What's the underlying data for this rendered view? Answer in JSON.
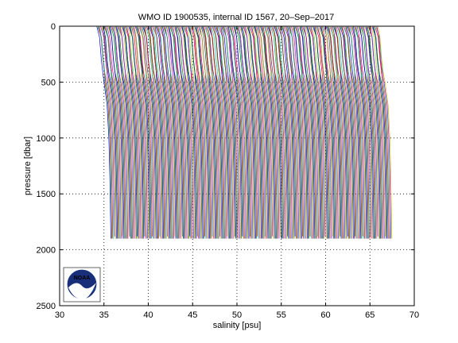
{
  "chart_data": {
    "type": "line",
    "title": "WMO ID 1900535, internal ID 1567, 20–Sep–2017",
    "xlabel": "salinity [psu]",
    "ylabel": "pressure [dbar]",
    "xlim": [
      30,
      70
    ],
    "ylim": [
      0,
      2500
    ],
    "y_inverted": true,
    "grid": true,
    "x_ticks": [
      30,
      35,
      40,
      45,
      50,
      55,
      60,
      65,
      70
    ],
    "y_ticks": [
      0,
      500,
      1000,
      1500,
      2000,
      2500
    ],
    "x_tick_labels": [
      "30",
      "35",
      "40",
      "45",
      "50",
      "55",
      "60",
      "65",
      "70"
    ],
    "y_tick_labels": [
      "0",
      "500",
      "1000",
      "1500",
      "2000",
      "2500"
    ],
    "series_colors": [
      "#0000ff",
      "#008000",
      "#ff0000",
      "#00bfbf",
      "#bf00bf",
      "#bfbf00",
      "#404040"
    ],
    "profile_pressures": [
      5,
      100,
      200,
      300,
      400,
      500,
      700,
      1000,
      1300,
      1600,
      1900
    ],
    "profile_shape_offsets": [
      -0.8,
      -0.5,
      -0.4,
      -0.3,
      -0.15,
      0.0,
      0.35,
      0.55,
      0.65,
      0.72,
      0.78
    ],
    "profile_count": 300,
    "profile_first_base_salinity": 35.0,
    "profile_salinity_step": 0.106,
    "profile_bottom_pressures_cycle": [
      1950,
      1900,
      1960,
      1920,
      1880,
      1940,
      1970,
      1910
    ],
    "logo": "noaa-logo"
  }
}
